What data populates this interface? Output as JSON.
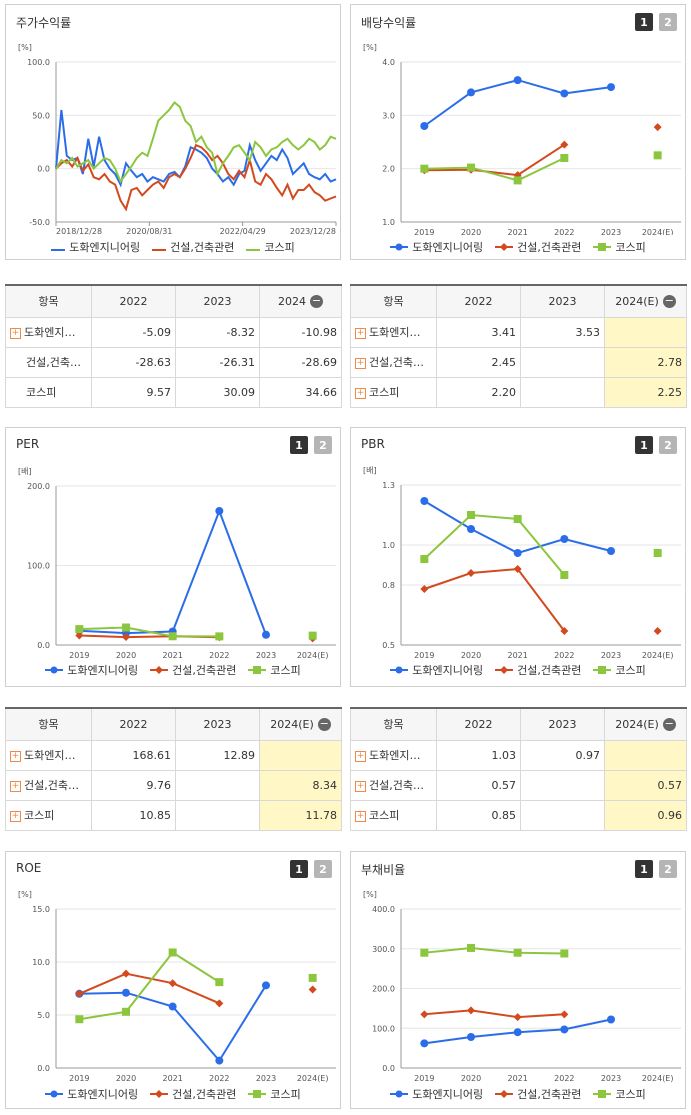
{
  "colors": {
    "company": "#2b6de8",
    "industry": "#d24a1e",
    "kospi": "#8cc63f",
    "grid": "#e6e6e6",
    "estimate_bg": "#fff7c6"
  },
  "buttons": {
    "b1": "1",
    "b2": "2"
  },
  "legend": {
    "company": "도화엔지니어링",
    "industry": "건설,건축관련",
    "kospi": "코스피"
  },
  "tables": {
    "name_header": "항목",
    "minus_icon": "−",
    "plus_icon": "+",
    "stock_return": {
      "headers": [
        "2022",
        "2023",
        "2024"
      ],
      "rows": [
        {
          "name": "도화엔지…",
          "plus": true,
          "values": [
            "-5.09",
            "-8.32",
            "-10.98"
          ]
        },
        {
          "name": "건설,건축…",
          "plus": false,
          "values": [
            "-28.63",
            "-26.31",
            "-28.69"
          ]
        },
        {
          "name": "코스피",
          "plus": false,
          "values": [
            "9.57",
            "30.09",
            "34.66"
          ]
        }
      ]
    },
    "dividend": {
      "headers": [
        "2022",
        "2023",
        "2024(E)"
      ],
      "rows": [
        {
          "name": "도화엔지…",
          "plus": true,
          "values": [
            "3.41",
            "3.53",
            ""
          ]
        },
        {
          "name": "건설,건축…",
          "plus": true,
          "values": [
            "2.45",
            "",
            "2.78"
          ]
        },
        {
          "name": "코스피",
          "plus": true,
          "values": [
            "2.20",
            "",
            "2.25"
          ]
        }
      ]
    },
    "per": {
      "headers": [
        "2022",
        "2023",
        "2024(E)"
      ],
      "rows": [
        {
          "name": "도화엔지…",
          "plus": true,
          "values": [
            "168.61",
            "12.89",
            ""
          ]
        },
        {
          "name": "건설,건축…",
          "plus": true,
          "values": [
            "9.76",
            "",
            "8.34"
          ]
        },
        {
          "name": "코스피",
          "plus": true,
          "values": [
            "10.85",
            "",
            "11.78"
          ]
        }
      ]
    },
    "pbr": {
      "headers": [
        "2022",
        "2023",
        "2024(E)"
      ],
      "rows": [
        {
          "name": "도화엔지…",
          "plus": true,
          "values": [
            "1.03",
            "0.97",
            ""
          ]
        },
        {
          "name": "건설,건축…",
          "plus": true,
          "values": [
            "0.57",
            "",
            "0.57"
          ]
        },
        {
          "name": "코스피",
          "plus": true,
          "values": [
            "0.85",
            "",
            "0.96"
          ]
        }
      ]
    }
  },
  "chart_data": [
    {
      "key": "stock_return",
      "type": "line",
      "title": "주가수익률",
      "unit": "[%]",
      "ylim": [
        -50,
        100
      ],
      "yticks": [
        "100.0",
        "50.0",
        "0.0",
        "-50.0"
      ],
      "xticks": [
        "2018/12/28",
        "2020/08/31",
        "2022/04/29",
        "2023/12/28"
      ],
      "series": [
        {
          "name": "도화엔지니어링",
          "values": [
            0,
            55,
            12,
            8,
            10,
            -5,
            28,
            2,
            30,
            8,
            0,
            -5,
            -15,
            5,
            -2,
            -8,
            -5,
            -12,
            -8,
            -10,
            -12,
            -5,
            -3,
            -8,
            2,
            20,
            18,
            15,
            10,
            0,
            -5,
            -12,
            -8,
            -15,
            -5,
            -2,
            22,
            8,
            -2,
            5,
            12,
            8,
            18,
            10,
            -5,
            0,
            5,
            -5,
            -8,
            -10,
            -5,
            -12,
            -10
          ]
        },
        {
          "name": "건설,건축관련",
          "values": [
            0,
            5,
            8,
            2,
            10,
            -2,
            4,
            -8,
            -10,
            -5,
            -12,
            -15,
            -30,
            -38,
            -20,
            -18,
            -25,
            -20,
            -15,
            -12,
            -18,
            -8,
            -5,
            -8,
            0,
            10,
            22,
            20,
            15,
            8,
            12,
            5,
            -5,
            -10,
            -2,
            -8,
            8,
            -12,
            -15,
            -5,
            -10,
            -18,
            -25,
            -15,
            -28,
            -20,
            -20,
            -15,
            -22,
            -25,
            -30,
            -28,
            -26
          ]
        },
        {
          "name": "코스피",
          "values": [
            0,
            8,
            5,
            10,
            2,
            5,
            8,
            0,
            5,
            10,
            8,
            0,
            -12,
            -5,
            2,
            10,
            15,
            12,
            28,
            45,
            50,
            55,
            62,
            58,
            45,
            40,
            25,
            30,
            20,
            15,
            -5,
            5,
            12,
            20,
            22,
            15,
            8,
            25,
            20,
            12,
            18,
            20,
            25,
            28,
            22,
            18,
            22,
            28,
            25,
            18,
            22,
            30,
            28
          ]
        }
      ]
    },
    {
      "key": "dividend",
      "type": "line",
      "title": "배당수익률",
      "unit": "[%]",
      "ylim": [
        1,
        4
      ],
      "yticks": [
        "4.0",
        "3.0",
        "2.0",
        "1.0"
      ],
      "xticks": [
        "2019",
        "2020",
        "2021",
        "2022",
        "2023",
        "2024(E)"
      ],
      "series": [
        {
          "name": "도화엔지니어링",
          "values": [
            2.8,
            3.43,
            3.66,
            3.41,
            3.53,
            null
          ]
        },
        {
          "name": "건설,건축관련",
          "values": [
            1.97,
            1.98,
            1.88,
            2.45,
            null,
            2.78
          ]
        },
        {
          "name": "코스피",
          "values": [
            2.0,
            2.02,
            1.78,
            2.2,
            null,
            2.25
          ]
        }
      ]
    },
    {
      "key": "per",
      "type": "line",
      "title": "PER",
      "unit": "[배]",
      "ylim": [
        0,
        200
      ],
      "yticks": [
        "200.0",
        "100.0",
        "0.0"
      ],
      "xticks": [
        "2019",
        "2020",
        "2021",
        "2022",
        "2023",
        "2024(E)"
      ],
      "series": [
        {
          "name": "도화엔지니어링",
          "values": [
            18,
            15,
            17,
            168.61,
            12.89,
            null
          ]
        },
        {
          "name": "건설,건축관련",
          "values": [
            12,
            10,
            11,
            9.76,
            null,
            8.34
          ]
        },
        {
          "name": "코스피",
          "values": [
            20,
            22,
            11,
            10.85,
            null,
            11.78
          ]
        }
      ]
    },
    {
      "key": "pbr",
      "type": "line",
      "title": "PBR",
      "unit": "[배]",
      "ylim": [
        0.5,
        1.3
      ],
      "yticks": [
        "1.3",
        "1.0",
        "0.8",
        "0.5"
      ],
      "xticks": [
        "2019",
        "2020",
        "2021",
        "2022",
        "2023",
        "2024(E)"
      ],
      "series": [
        {
          "name": "도화엔지니어링",
          "values": [
            1.22,
            1.08,
            0.96,
            1.03,
            0.97,
            null
          ]
        },
        {
          "name": "건설,건축관련",
          "values": [
            0.78,
            0.86,
            0.88,
            0.57,
            null,
            0.57
          ]
        },
        {
          "name": "코스피",
          "values": [
            0.93,
            1.15,
            1.13,
            0.85,
            null,
            0.96
          ]
        }
      ]
    },
    {
      "key": "roe",
      "type": "line",
      "title": "ROE",
      "unit": "[%]",
      "ylim": [
        0,
        15
      ],
      "yticks": [
        "15.0",
        "10.0",
        "5.0",
        "0.0"
      ],
      "xticks": [
        "2019",
        "2020",
        "2021",
        "2022",
        "2023",
        "2024(E)"
      ],
      "series": [
        {
          "name": "도화엔지니어링",
          "values": [
            7.0,
            7.1,
            5.8,
            0.7,
            7.8,
            null
          ]
        },
        {
          "name": "건설,건축관련",
          "values": [
            7.0,
            8.9,
            8.0,
            6.1,
            null,
            7.4
          ]
        },
        {
          "name": "코스피",
          "values": [
            4.6,
            5.3,
            10.9,
            8.1,
            null,
            8.5
          ]
        }
      ]
    },
    {
      "key": "debt",
      "type": "line",
      "title": "부채비율",
      "unit": "[%]",
      "ylim": [
        0,
        400
      ],
      "yticks": [
        "400.0",
        "300.0",
        "200.0",
        "100.0",
        "0.0"
      ],
      "xticks": [
        "2019",
        "2020",
        "2021",
        "2022",
        "2023",
        "2024(E)"
      ],
      "series": [
        {
          "name": "도화엔지니어링",
          "values": [
            62,
            78,
            90,
            97,
            122,
            null
          ]
        },
        {
          "name": "건설,건축관련",
          "values": [
            135,
            145,
            128,
            135,
            null,
            null
          ]
        },
        {
          "name": "코스피",
          "values": [
            290,
            302,
            290,
            288,
            null,
            null
          ]
        }
      ]
    }
  ]
}
